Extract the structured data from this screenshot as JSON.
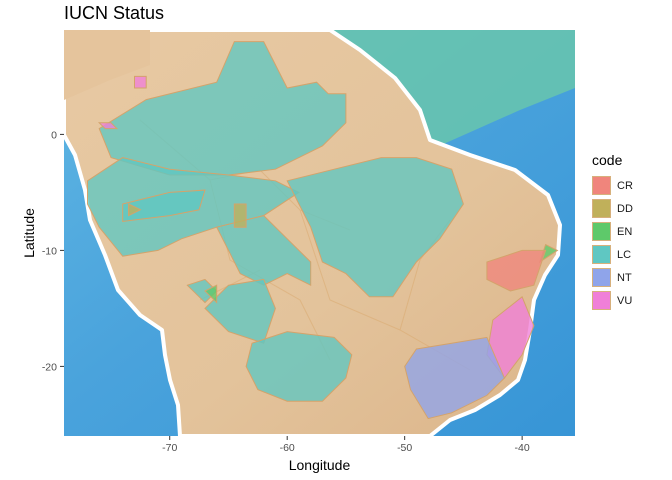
{
  "title": "IUCN Status",
  "xlabel": "Longitude",
  "ylabel": "Latitude",
  "legend": {
    "title": "code",
    "entries": [
      {
        "code": "CR",
        "color": "#f0857c"
      },
      {
        "code": "DD",
        "color": "#c0b05a"
      },
      {
        "code": "EN",
        "color": "#5ec96a"
      },
      {
        "code": "LC",
        "color": "#5fc7c2"
      },
      {
        "code": "NT",
        "color": "#8fa4ea"
      },
      {
        "code": "VU",
        "color": "#f07fd8"
      }
    ]
  },
  "chart_data": {
    "type": "map",
    "xlim": [
      -79,
      -35.5
    ],
    "ylim": [
      -26,
      9
    ],
    "x_ticks": [
      -70,
      -60,
      -50,
      -40
    ],
    "y_ticks": [
      0,
      -10,
      -20
    ],
    "x_tick_labels": [
      "-70",
      "-60",
      "-50",
      "-40"
    ],
    "y_tick_labels": [
      "0",
      "-10",
      "-20"
    ],
    "regions": [
      {
        "code": "LC",
        "points": [
          [
            -75,
            -2
          ],
          [
            -76,
            0.5
          ],
          [
            -72,
            3
          ],
          [
            -66,
            4.5
          ],
          [
            -64.5,
            8
          ],
          [
            -62,
            8
          ],
          [
            -60,
            4
          ],
          [
            -57.5,
            4.5
          ],
          [
            -56.5,
            3.5
          ],
          [
            -55,
            3.5
          ],
          [
            -55,
            1
          ],
          [
            -57,
            -1
          ],
          [
            -61,
            -3
          ],
          [
            -65,
            -3.5
          ],
          [
            -70,
            -3.5
          ]
        ]
      },
      {
        "code": "LC",
        "points": [
          [
            -77,
            -4
          ],
          [
            -74,
            -2
          ],
          [
            -70,
            -3
          ],
          [
            -65,
            -3.5
          ],
          [
            -61,
            -4
          ],
          [
            -59,
            -5
          ],
          [
            -62,
            -7
          ],
          [
            -66,
            -8
          ],
          [
            -69,
            -9
          ],
          [
            -71,
            -10
          ],
          [
            -74,
            -10.5
          ],
          [
            -76,
            -8
          ],
          [
            -77,
            -6
          ]
        ]
      },
      {
        "code": "LC",
        "points": [
          [
            -60,
            -4
          ],
          [
            -56,
            -3
          ],
          [
            -52,
            -2
          ],
          [
            -49,
            -2
          ],
          [
            -46,
            -3
          ],
          [
            -45,
            -6
          ],
          [
            -47,
            -9
          ],
          [
            -49,
            -11
          ],
          [
            -51,
            -14
          ],
          [
            -53,
            -14
          ],
          [
            -55,
            -12
          ],
          [
            -57,
            -11
          ],
          [
            -58,
            -8
          ],
          [
            -59,
            -6
          ]
        ]
      },
      {
        "code": "LC",
        "points": [
          [
            -66,
            -8
          ],
          [
            -62,
            -7
          ],
          [
            -60,
            -9
          ],
          [
            -58,
            -11
          ],
          [
            -58,
            -13
          ],
          [
            -60,
            -12
          ],
          [
            -62,
            -13
          ],
          [
            -64,
            -12
          ],
          [
            -65,
            -10
          ]
        ]
      },
      {
        "code": "LC",
        "points": [
          [
            -65,
            -13
          ],
          [
            -62,
            -12.5
          ],
          [
            -61,
            -15
          ],
          [
            -62,
            -18
          ],
          [
            -65,
            -17
          ],
          [
            -67,
            -15
          ]
        ]
      },
      {
        "code": "LC",
        "points": [
          [
            -63,
            -18
          ],
          [
            -60,
            -17
          ],
          [
            -56,
            -17.5
          ],
          [
            -54.5,
            -19
          ],
          [
            -55,
            -21
          ],
          [
            -57,
            -23
          ],
          [
            -60,
            -23
          ],
          [
            -62.5,
            -22
          ],
          [
            -63.5,
            -20
          ]
        ]
      },
      {
        "code": "LC",
        "points": [
          [
            -68.5,
            -13
          ],
          [
            -67,
            -12.5
          ],
          [
            -66,
            -13.5
          ],
          [
            -67,
            -14.5
          ]
        ]
      },
      {
        "code": "LC",
        "points": [
          [
            -74,
            -6
          ],
          [
            -70,
            -5
          ],
          [
            -67,
            -4.8
          ],
          [
            -67.5,
            -6.5
          ],
          [
            -70,
            -7
          ],
          [
            -74,
            -7.5
          ]
        ]
      },
      {
        "code": "DD",
        "points": [
          [
            -64.5,
            -6
          ],
          [
            -63.5,
            -6
          ],
          [
            -63.5,
            -8
          ],
          [
            -64.5,
            -8
          ]
        ]
      },
      {
        "code": "DD",
        "points": [
          [
            -73.5,
            -6
          ],
          [
            -72.5,
            -6.5
          ],
          [
            -73.5,
            -7
          ]
        ]
      },
      {
        "code": "EN",
        "points": [
          [
            -67,
            -13.5
          ],
          [
            -66,
            -13
          ],
          [
            -66,
            -14.5
          ]
        ]
      },
      {
        "code": "EN",
        "points": [
          [
            -38,
            -9.5
          ],
          [
            -37,
            -10
          ],
          [
            -38.5,
            -11
          ]
        ]
      },
      {
        "code": "CR",
        "points": [
          [
            -43,
            -11
          ],
          [
            -40,
            -10
          ],
          [
            -38,
            -10
          ],
          [
            -39,
            -13
          ],
          [
            -41,
            -13.5
          ],
          [
            -43,
            -12.5
          ]
        ]
      },
      {
        "code": "VU",
        "points": [
          [
            -42.5,
            -16
          ],
          [
            -40,
            -14
          ],
          [
            -39,
            -16.5
          ],
          [
            -40,
            -19
          ],
          [
            -41.5,
            -21
          ],
          [
            -43,
            -19
          ]
        ]
      },
      {
        "code": "VU",
        "points": [
          [
            -73,
            5
          ],
          [
            -72,
            5
          ],
          [
            -72,
            4
          ],
          [
            -73,
            4
          ]
        ]
      },
      {
        "code": "VU",
        "points": [
          [
            -76,
            1
          ],
          [
            -75,
            1
          ],
          [
            -74.5,
            0.5
          ],
          [
            -75.5,
            0.5
          ]
        ]
      },
      {
        "code": "NT",
        "points": [
          [
            -49,
            -18.5
          ],
          [
            -46,
            -18
          ],
          [
            -43,
            -17.5
          ],
          [
            -41.5,
            -21
          ],
          [
            -43,
            -22.5
          ],
          [
            -46,
            -24
          ],
          [
            -48,
            -24.5
          ],
          [
            -49.5,
            -22
          ],
          [
            -50,
            -20
          ]
        ]
      }
    ]
  }
}
